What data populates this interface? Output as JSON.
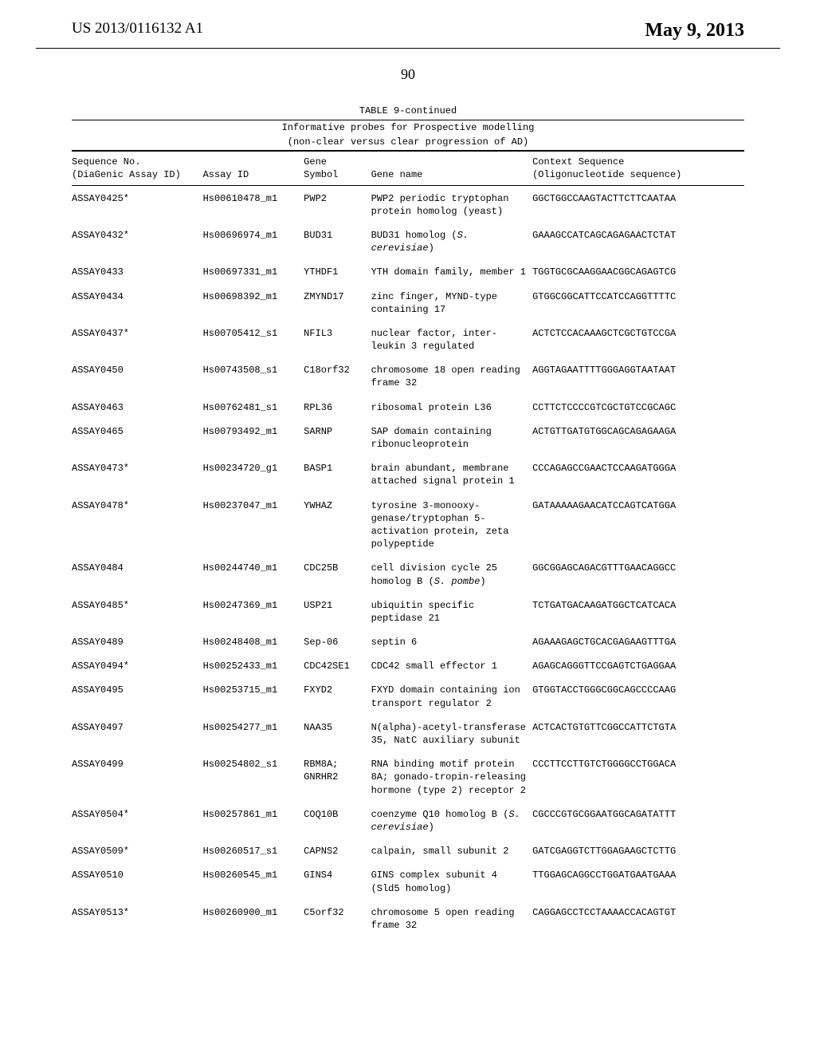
{
  "header": {
    "publication_number": "US 2013/0116132 A1",
    "publication_date": "May 9, 2013"
  },
  "page_number": "90",
  "table": {
    "label": "TABLE 9-continued",
    "caption_line1": "Informative probes for Prospective modelling",
    "caption_line2": "(non-clear versus clear progression of AD)",
    "columns": {
      "sequence_no_line1": "Sequence No.",
      "sequence_no_line2": "(DiaGenic Assay ID)",
      "assay_id": "Assay ID",
      "gene_symbol_line1": "Gene",
      "gene_symbol_line2": "Symbol",
      "gene_name": "Gene name",
      "context_line1": "Context Sequence",
      "context_line2": "(Oligonucleotide sequence)"
    },
    "rows": [
      {
        "seq": "ASSAY0425*",
        "assay": "Hs00610478_m1",
        "gene": "PWP2",
        "name": "PWP2 periodic tryptophan protein homolog (yeast)",
        "ctx": "GGCTGGCCAAGTACTTCTTCAATAA"
      },
      {
        "seq": "ASSAY0432*",
        "assay": "Hs00696974_m1",
        "gene": "BUD31",
        "name": "BUD31 homolog (S. cerevisiae)",
        "name_html": "BUD31 homolog (<i>S. cerevisiae</i>)",
        "ctx": "GAAAGCCATCAGCAGAGAACTCTAT"
      },
      {
        "seq": "ASSAY0433",
        "assay": "Hs00697331_m1",
        "gene": "YTHDF1",
        "name": "YTH domain family, member 1",
        "ctx": "TGGTGCGCAAGGAACGGCAGAGTCG"
      },
      {
        "seq": "ASSAY0434",
        "assay": "Hs00698392_m1",
        "gene": "ZMYND17",
        "name": "zinc finger, MYND-type containing 17",
        "ctx": "GTGGCGGCATTCCATCCAGGTTTTC"
      },
      {
        "seq": "ASSAY0437*",
        "assay": "Hs00705412_s1",
        "gene": "NFIL3",
        "name": "nuclear factor, inter-leukin 3 regulated",
        "ctx": "ACTCTCCACAAAGCTCGCTGTCCGA"
      },
      {
        "seq": "ASSAY0450",
        "assay": "Hs00743508_s1",
        "gene": "C18orf32",
        "name": "chromosome 18 open reading frame 32",
        "ctx": "AGGTAGAATTTTGGGAGGTAATAAT"
      },
      {
        "seq": "ASSAY0463",
        "assay": "Hs00762481_s1",
        "gene": "RPL36",
        "name": "ribosomal protein L36",
        "ctx": "CCTTCTCCCCGTCGCTGTCCGCAGC"
      },
      {
        "seq": "ASSAY0465",
        "assay": "Hs00793492_m1",
        "gene": "SARNP",
        "name": "SAP domain containing ribonucleoprotein",
        "ctx": "ACTGTTGATGTGGCAGCAGAGAAGA"
      },
      {
        "seq": "ASSAY0473*",
        "assay": "Hs00234720_g1",
        "gene": "BASP1",
        "name": "brain abundant, membrane attached signal protein 1",
        "ctx": "CCCAGAGCCGAACTCCAAGATGGGA"
      },
      {
        "seq": "ASSAY0478*",
        "assay": "Hs00237047_m1",
        "gene": "YWHAZ",
        "name": "tyrosine 3-monooxy-genase/tryptophan 5-activation protein, zeta polypeptide",
        "ctx": "GATAAAAAGAACATCCAGTCATGGA"
      },
      {
        "seq": "ASSAY0484",
        "assay": "Hs00244740_m1",
        "gene": "CDC25B",
        "name": "cell division cycle 25 homolog B (S. pombe)",
        "name_html": "cell division cycle 25 homolog B (<i>S. pombe</i>)",
        "ctx": "GGCGGAGCAGACGTTTGAACAGGCC"
      },
      {
        "seq": "ASSAY0485*",
        "assay": "Hs00247369_m1",
        "gene": "USP21",
        "name": "ubiquitin specific peptidase 21",
        "ctx": "TCTGATGACAAGATGGCTCATCACA"
      },
      {
        "seq": "ASSAY0489",
        "assay": "Hs00248408_m1",
        "gene": "Sep-06",
        "name": "septin 6",
        "ctx": "AGAAAGAGCTGCACGAGAAGTTTGA"
      },
      {
        "seq": "ASSAY0494*",
        "assay": "Hs00252433_m1",
        "gene": "CDC42SE1",
        "name": "CDC42 small effector 1",
        "ctx": "AGAGCAGGGTTCCGAGTCTGAGGAA"
      },
      {
        "seq": "ASSAY0495",
        "assay": "Hs00253715_m1",
        "gene": "FXYD2",
        "name": "FXYD domain containing ion transport regulator 2",
        "ctx": "GTGGTACCTGGGCGGCAGCCCCAAG"
      },
      {
        "seq": "ASSAY0497",
        "assay": "Hs00254277_m1",
        "gene": "NAA35",
        "name": "N(alpha)-acetyl-transferase 35, NatC auxiliary subunit",
        "ctx": "ACTCACTGTGTTCGGCCATTCTGTA"
      },
      {
        "seq": "ASSAY0499",
        "assay": "Hs00254802_s1",
        "gene": "RBM8A; GNRHR2",
        "name": "RNA binding motif protein 8A; gonado-tropin-releasing hormone (type 2) receptor 2",
        "ctx": "CCCTTCCTTGTCTGGGGCCTGGACA"
      },
      {
        "seq": "ASSAY0504*",
        "assay": "Hs00257861_m1",
        "gene": "COQ10B",
        "name": "coenzyme Q10 homolog B (S. cerevisiae)",
        "name_html": "coenzyme Q10 homolog B (<i>S. cerevisiae</i>)",
        "ctx": "CGCCCGTGCGGAATGGCAGATATTT"
      },
      {
        "seq": "ASSAY0509*",
        "assay": "Hs00260517_s1",
        "gene": "CAPNS2",
        "name": "calpain, small subunit 2",
        "ctx": "GATCGAGGTCTTGGAGAAGCTCTTG"
      },
      {
        "seq": "ASSAY0510",
        "assay": "Hs00260545_m1",
        "gene": "GINS4",
        "name": "GINS complex subunit 4 (Sld5 homolog)",
        "ctx": "TTGGAGCAGGCCTGGATGAATGAAA"
      },
      {
        "seq": "ASSAY0513*",
        "assay": "Hs00260900_m1",
        "gene": "C5orf32",
        "name": "chromosome 5 open reading frame 32",
        "ctx": "CAGGAGCCTCCTAAAACCACAGTGT"
      }
    ]
  }
}
